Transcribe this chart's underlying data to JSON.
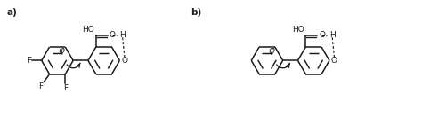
{
  "fig_width": 4.74,
  "fig_height": 1.32,
  "dpi": 100,
  "bg_color": "#ffffff",
  "line_color": "#1a1a1a",
  "line_width": 1.1,
  "label_a": "a)",
  "label_b": "b)",
  "phi_label": "φ",
  "ho_label": "HO",
  "o_label": "O",
  "h_label": "H",
  "f_label": "F",
  "font_size": 7.5,
  "small_font": 6.5
}
